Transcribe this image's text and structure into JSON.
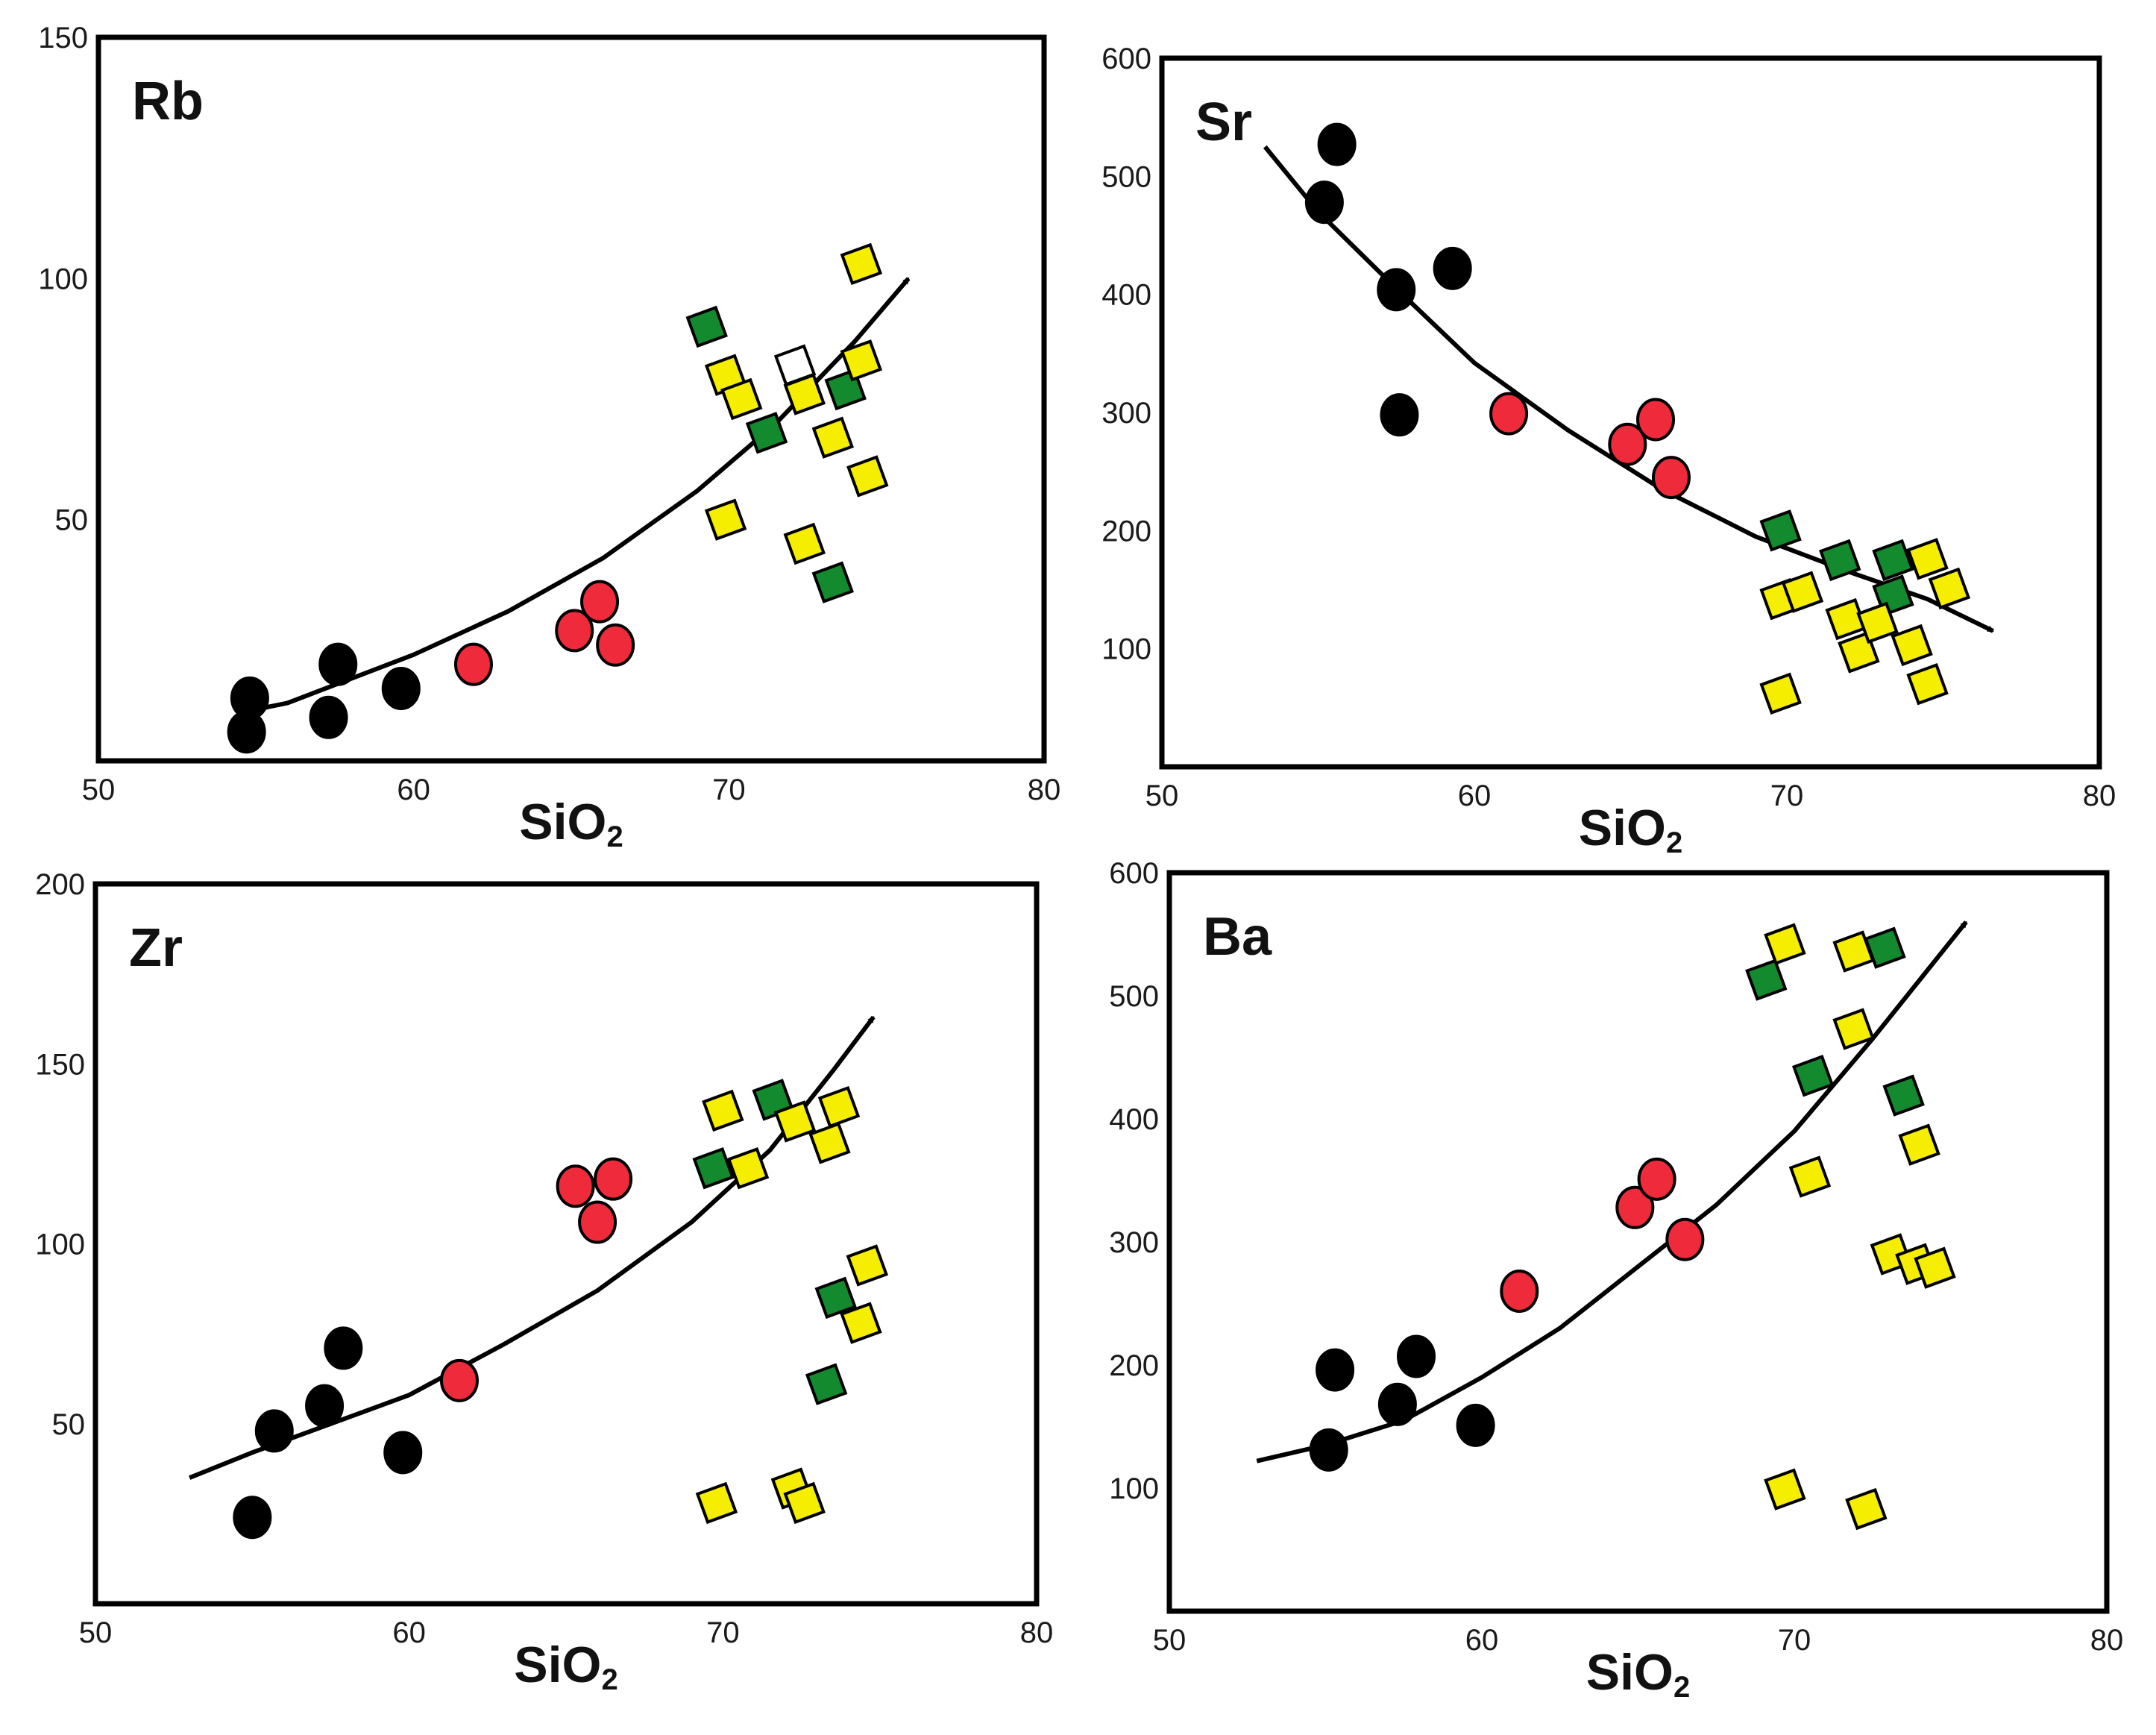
{
  "colors": {
    "group_black": "#000000",
    "group_red": "#ee2a3b",
    "group_green": "#138a2e",
    "group_yellow": "#f5ee00",
    "group_open": "#ffffff",
    "marker_stroke": "#000000"
  },
  "chart_data": [
    {
      "type": "scatter",
      "title": "Rb",
      "xlabel": "SiO",
      "xlabel_subscript": "2",
      "xlim": [
        50,
        80
      ],
      "ylim": [
        0,
        150
      ],
      "x_ticks": [
        "50",
        "60",
        "70",
        "80"
      ],
      "y_ticks": [
        "50",
        "100",
        "150"
      ],
      "x_tick_values": [
        50,
        60,
        70,
        80
      ],
      "y_tick_values": [
        50,
        100,
        150
      ],
      "trend": [
        [
          54.5,
          10
        ],
        [
          56,
          12
        ],
        [
          58,
          17
        ],
        [
          60,
          22
        ],
        [
          63,
          31
        ],
        [
          66,
          42
        ],
        [
          69,
          56
        ],
        [
          71.5,
          70
        ],
        [
          74,
          87
        ],
        [
          75.7,
          100
        ]
      ],
      "series": [
        {
          "marker": "circle",
          "color": "group_black",
          "points": [
            [
              54.8,
              13
            ],
            [
              54.7,
              6
            ],
            [
              57.3,
              9
            ],
            [
              57.6,
              20
            ],
            [
              59.6,
              15
            ]
          ]
        },
        {
          "marker": "circle",
          "color": "group_red",
          "points": [
            [
              61.9,
              20
            ],
            [
              65.1,
              27
            ],
            [
              65.9,
              33
            ],
            [
              66.4,
              24
            ]
          ]
        },
        {
          "marker": "square",
          "color": "group_green",
          "points": [
            [
              69.3,
              90
            ],
            [
              71.2,
              68
            ],
            [
              73.7,
              77
            ],
            [
              73.3,
              37
            ]
          ]
        },
        {
          "marker": "square",
          "color": "group_yellow",
          "points": [
            [
              69.9,
              80
            ],
            [
              70.4,
              75
            ],
            [
              72.4,
              76
            ],
            [
              73.3,
              67
            ],
            [
              74.2,
              83
            ],
            [
              74.2,
              103
            ],
            [
              74.4,
              59
            ],
            [
              69.9,
              50
            ],
            [
              72.4,
              45
            ]
          ]
        },
        {
          "marker": "square",
          "color": "group_open",
          "points": [
            [
              72.1,
              82
            ]
          ]
        }
      ]
    },
    {
      "type": "scatter",
      "title": "Sr",
      "xlabel": "SiO",
      "xlabel_subscript": "2",
      "xlim": [
        50,
        80
      ],
      "ylim": [
        0,
        600
      ],
      "x_ticks": [
        "50",
        "60",
        "70",
        "80"
      ],
      "y_ticks": [
        "100",
        "200",
        "300",
        "400",
        "500",
        "600"
      ],
      "x_tick_values": [
        50,
        60,
        70,
        80
      ],
      "y_tick_values": [
        100,
        200,
        300,
        400,
        500,
        600
      ],
      "trend": [
        [
          53.3,
          525
        ],
        [
          55,
          470
        ],
        [
          57.5,
          405
        ],
        [
          60,
          342
        ],
        [
          63,
          285
        ],
        [
          66,
          235
        ],
        [
          69,
          195
        ],
        [
          72,
          165
        ],
        [
          74.5,
          142
        ],
        [
          76.6,
          115
        ]
      ],
      "series": [
        {
          "marker": "circle",
          "color": "group_black",
          "points": [
            [
              55.6,
              527
            ],
            [
              55.2,
              478
            ],
            [
              57.5,
              404
            ],
            [
              59.3,
              422
            ],
            [
              57.6,
              298
            ]
          ]
        },
        {
          "marker": "circle",
          "color": "group_red",
          "points": [
            [
              61.1,
              299
            ],
            [
              64.9,
              273
            ],
            [
              65.8,
              294
            ],
            [
              66.3,
              245
            ]
          ]
        },
        {
          "marker": "square",
          "color": "group_green",
          "points": [
            [
              69.8,
              200
            ],
            [
              71.7,
              175
            ],
            [
              73.4,
              175
            ],
            [
              73.4,
              145
            ]
          ]
        },
        {
          "marker": "square",
          "color": "group_yellow",
          "points": [
            [
              69.8,
              142
            ],
            [
              70.5,
              148
            ],
            [
              71.9,
              125
            ],
            [
              72.3,
              97
            ],
            [
              72.9,
              122
            ],
            [
              74,
              103
            ],
            [
              74.5,
              176
            ],
            [
              75.2,
              151
            ],
            [
              74.5,
              70
            ],
            [
              69.8,
              62
            ]
          ]
        }
      ]
    },
    {
      "type": "scatter",
      "title": "Zr",
      "xlabel": "SiO",
      "xlabel_subscript": "2",
      "xlim": [
        50,
        80
      ],
      "ylim": [
        0,
        200
      ],
      "x_ticks": [
        "50",
        "60",
        "70",
        "80"
      ],
      "y_ticks": [
        "50",
        "100",
        "150",
        "200"
      ],
      "x_tick_values": [
        50,
        60,
        70,
        80
      ],
      "y_tick_values": [
        50,
        100,
        150,
        200
      ],
      "trend": [
        [
          53,
          35
        ],
        [
          55,
          42
        ],
        [
          57.5,
          50
        ],
        [
          60,
          58
        ],
        [
          63,
          72
        ],
        [
          66,
          87
        ],
        [
          69,
          106
        ],
        [
          71.5,
          126
        ],
        [
          73.5,
          148
        ],
        [
          74.8,
          163
        ]
      ],
      "series": [
        {
          "marker": "circle",
          "color": "group_black",
          "points": [
            [
              55,
              24
            ],
            [
              55.7,
              48
            ],
            [
              57.3,
              55
            ],
            [
              57.9,
              71
            ],
            [
              59.8,
              42
            ]
          ]
        },
        {
          "marker": "circle",
          "color": "group_red",
          "points": [
            [
              61.6,
              62
            ],
            [
              65.3,
              116
            ],
            [
              66,
              106
            ],
            [
              66.5,
              118
            ]
          ]
        },
        {
          "marker": "square",
          "color": "group_green",
          "points": [
            [
              69.7,
              121
            ],
            [
              71.6,
              140
            ],
            [
              73.6,
              85
            ],
            [
              73.3,
              61
            ]
          ]
        },
        {
          "marker": "square",
          "color": "group_yellow",
          "points": [
            [
              70,
              137
            ],
            [
              70.8,
              121
            ],
            [
              72.3,
              134
            ],
            [
              73.4,
              128
            ],
            [
              73.7,
              138
            ],
            [
              74.6,
              94
            ],
            [
              74.4,
              78
            ],
            [
              69.8,
              28
            ],
            [
              72.2,
              32
            ],
            [
              72.6,
              28
            ]
          ]
        }
      ]
    },
    {
      "type": "scatter",
      "title": "Ba",
      "xlabel": "SiO",
      "xlabel_subscript": "2",
      "xlim": [
        50,
        80
      ],
      "ylim": [
        0,
        600
      ],
      "x_ticks": [
        "50",
        "60",
        "70",
        "80"
      ],
      "y_ticks": [
        "100",
        "200",
        "300",
        "400",
        "500",
        "600"
      ],
      "x_tick_values": [
        50,
        60,
        70,
        80
      ],
      "y_tick_values": [
        100,
        200,
        300,
        400,
        500,
        600
      ],
      "trend": [
        [
          52.8,
          122
        ],
        [
          55,
          135
        ],
        [
          57.5,
          155
        ],
        [
          60,
          190
        ],
        [
          62.5,
          230
        ],
        [
          65,
          280
        ],
        [
          67.5,
          330
        ],
        [
          70,
          390
        ],
        [
          72.5,
          465
        ],
        [
          75.5,
          560
        ]
      ],
      "series": [
        {
          "marker": "circle",
          "color": "group_black",
          "points": [
            [
              55.3,
              196
            ],
            [
              55.1,
              131
            ],
            [
              57.3,
              168
            ],
            [
              57.9,
              207
            ],
            [
              59.8,
              151
            ]
          ]
        },
        {
          "marker": "circle",
          "color": "group_red",
          "points": [
            [
              61.2,
              260
            ],
            [
              64.9,
              328
            ],
            [
              65.6,
              351
            ],
            [
              66.5,
              302
            ]
          ]
        },
        {
          "marker": "square",
          "color": "group_green",
          "points": [
            [
              69.1,
              513
            ],
            [
              72.9,
              539
            ],
            [
              70.6,
              435
            ],
            [
              73.5,
              419
            ]
          ]
        },
        {
          "marker": "square",
          "color": "group_yellow",
          "points": [
            [
              69.7,
              542
            ],
            [
              71.9,
              536
            ],
            [
              71.9,
              473
            ],
            [
              70.5,
              353
            ],
            [
              74,
              379
            ],
            [
              73.1,
              290
            ],
            [
              73.9,
              282
            ],
            [
              74.5,
              279
            ],
            [
              69.7,
              99
            ],
            [
              72.3,
              83
            ]
          ]
        }
      ]
    }
  ]
}
